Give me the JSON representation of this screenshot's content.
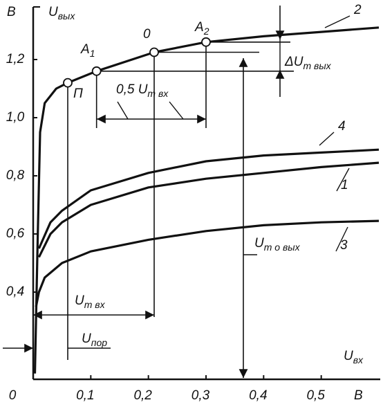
{
  "chart_data": {
    "type": "line",
    "series": [
      {
        "name": "2",
        "color": "#111",
        "x": [
          0.003,
          0.008,
          0.012,
          0.02,
          0.04,
          0.06,
          0.11,
          0.21,
          0.3,
          0.4,
          0.5,
          0.6
        ],
        "values": [
          0.12,
          0.6,
          0.95,
          1.05,
          1.1,
          1.12,
          1.16,
          1.225,
          1.26,
          1.28,
          1.295,
          1.31
        ]
      },
      {
        "name": "4",
        "color": "#111",
        "x": [
          0.01,
          0.03,
          0.05,
          0.1,
          0.2,
          0.3,
          0.4,
          0.5,
          0.6
        ],
        "values": [
          0.55,
          0.64,
          0.68,
          0.75,
          0.81,
          0.85,
          0.87,
          0.88,
          0.89
        ]
      },
      {
        "name": "1",
        "color": "#111",
        "x": [
          0.01,
          0.03,
          0.05,
          0.1,
          0.2,
          0.3,
          0.4,
          0.5,
          0.6
        ],
        "values": [
          0.52,
          0.6,
          0.64,
          0.7,
          0.76,
          0.79,
          0.81,
          0.83,
          0.845
        ]
      },
      {
        "name": "3",
        "color": "#111",
        "x": [
          0.005,
          0.01,
          0.02,
          0.05,
          0.1,
          0.2,
          0.3,
          0.4,
          0.5,
          0.6
        ],
        "values": [
          0.35,
          0.4,
          0.45,
          0.5,
          0.54,
          0.58,
          0.61,
          0.63,
          0.64,
          0.645
        ]
      }
    ],
    "points": [
      {
        "text": "П",
        "x": 0.06,
        "y": 1.12
      },
      {
        "text": "A",
        "sub": "1",
        "x": 0.11,
        "y": 1.16
      },
      {
        "text": "0",
        "x": 0.21,
        "y": 1.225
      },
      {
        "text": "A",
        "sub": "2",
        "x": 0.3,
        "y": 1.26
      }
    ],
    "annotations": [
      {
        "text": "U",
        "sub": "вых"
      },
      {
        "text": "В"
      },
      {
        "text": "U",
        "sub": "вх"
      },
      {
        "text": "В"
      },
      {
        "text": "ΔU",
        "sub": "m вых"
      },
      {
        "text": "0,5 U",
        "sub": "m вх"
      },
      {
        "text": "U",
        "sub": "m вх"
      },
      {
        "text": "U",
        "sub": "пор"
      },
      {
        "text": "U",
        "sub": "m o вых"
      }
    ],
    "xlim": [
      0,
      0.6
    ],
    "ylim": [
      0.1,
      1.35
    ],
    "xticks": [
      0,
      {
        "value": 0.1,
        "label": "0,1"
      },
      {
        "value": 0.2,
        "label": "0,2"
      },
      {
        "value": 0.3,
        "label": "0,3"
      },
      {
        "value": 0.4,
        "label": "0,4"
      },
      {
        "value": 0.5,
        "label": "0,5"
      }
    ],
    "yticks": [
      {
        "value": 0.4,
        "label": "0,4"
      },
      {
        "value": 0.6,
        "label": "0,6"
      },
      {
        "value": 0.8,
        "label": "0,8"
      },
      {
        "value": 1.0,
        "label": "1,0"
      },
      {
        "value": 1.2,
        "label": "1,2"
      }
    ]
  }
}
